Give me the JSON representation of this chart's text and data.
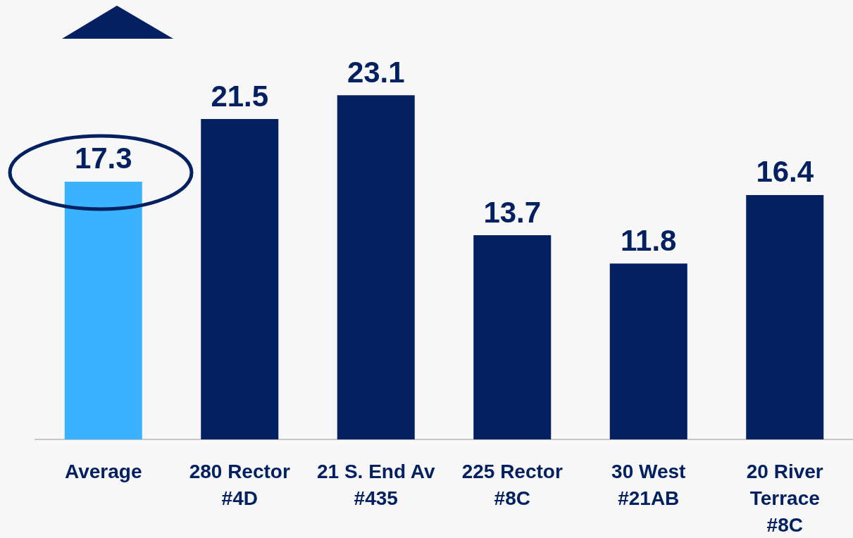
{
  "chart_data": {
    "type": "bar",
    "categories": [
      "Average",
      "280 Rector\n#4D",
      "21 S. End Av\n#435",
      "225 Rector\n#8C",
      "30 West\n#21AB",
      "20 River\nTerrace\n#8C"
    ],
    "values": [
      17.3,
      21.5,
      23.1,
      13.7,
      11.8,
      16.4
    ],
    "colors": [
      "#3bb2ff",
      "#032060",
      "#032060",
      "#032060",
      "#032060",
      "#032060"
    ],
    "data_labels": true,
    "tick_labels": "x"
  }
}
